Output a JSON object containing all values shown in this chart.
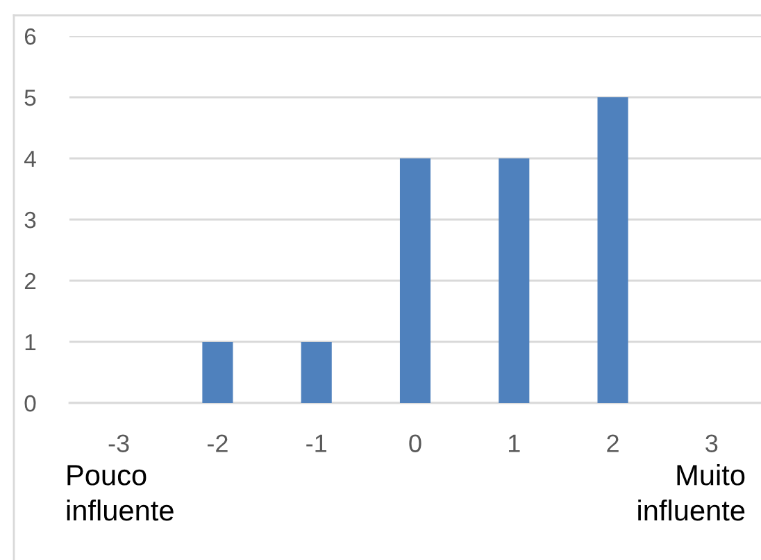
{
  "chart_data": {
    "type": "bar",
    "categories": [
      "-3",
      "-2",
      "-1",
      "0",
      "1",
      "2",
      "3"
    ],
    "values": [
      0,
      1,
      1,
      4,
      4,
      5,
      0
    ],
    "color": "#4f81bd",
    "ylim": [
      0,
      6
    ],
    "yticks": [
      0,
      1,
      2,
      3,
      4,
      5,
      6
    ],
    "grid": "y",
    "legend": false,
    "annotations": [
      "Pouco\ninfluente",
      "Muito\ninfluente"
    ]
  }
}
